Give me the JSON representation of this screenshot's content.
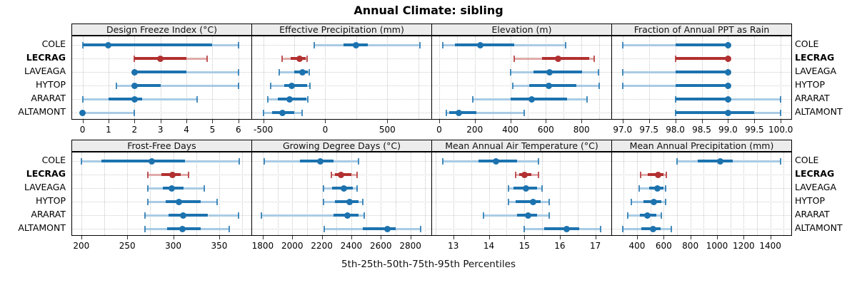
{
  "title": "Annual Climate: sibling",
  "caption": "5th-25th-50th-75th-95th Percentiles",
  "sites": [
    "COLE",
    "LECRAG",
    "LAVEAGA",
    "HYTOP",
    "ARARAT",
    "ALTAMONT"
  ],
  "highlight_site": "LECRAG",
  "colors": {
    "blue": "#1c72ae",
    "blue_light": "#a9cbe5",
    "red": "#b23030",
    "red_light": "#e0abab",
    "grid": "#c6c6c6",
    "strip_bg": "#ececec",
    "panel_border": "#000000"
  },
  "chart_data": {
    "type": "scatter",
    "variant": "percentile-dot-interval",
    "percentiles": [
      5,
      25,
      50,
      75,
      95
    ],
    "legend": "none",
    "grid_on": true,
    "panels": [
      {
        "title": "Design Freeze Index (°C)",
        "row": 0,
        "col": 0,
        "domain": [
          -0.4,
          6.5
        ],
        "tick_values": [
          0,
          1,
          2,
          3,
          4,
          5,
          6
        ],
        "tick_labels": [
          "0",
          "1",
          "2",
          "3",
          "4",
          "5",
          "6"
        ],
        "grid": {
          "start": 0,
          "step": 1,
          "end": 6
        },
        "series": [
          {
            "site": "COLE",
            "values": [
              0,
              0,
              1,
              5,
              6
            ]
          },
          {
            "site": "LECRAG",
            "values": [
              2,
              2,
              3,
              4,
              4.8
            ]
          },
          {
            "site": "LAVEAGA",
            "values": [
              2,
              2,
              2,
              4,
              6
            ]
          },
          {
            "site": "HYTOP",
            "values": [
              1.3,
              2,
              2,
              3,
              6
            ]
          },
          {
            "site": "ARARAT",
            "values": [
              0,
              1,
              2,
              2.3,
              4.4
            ]
          },
          {
            "site": "ALTAMONT",
            "values": [
              0,
              0,
              0,
              0,
              2
            ]
          }
        ]
      },
      {
        "title": "Effective Precipitation (mm)",
        "row": 0,
        "col": 1,
        "domain": [
          -590,
          855
        ],
        "tick_values": [
          -500,
          0,
          500
        ],
        "tick_labels": [
          "-500",
          "0",
          "500"
        ],
        "grid": {
          "start": -500,
          "step": 250,
          "end": 750
        },
        "series": [
          {
            "site": "COLE",
            "values": [
              -90,
              145,
              250,
              345,
              765
            ]
          },
          {
            "site": "LECRAG",
            "values": [
              -350,
              -280,
              -205,
              -160,
              -145
            ]
          },
          {
            "site": "LAVEAGA",
            "values": [
              -370,
              -250,
              -185,
              -140,
              -130
            ]
          },
          {
            "site": "HYTOP",
            "values": [
              -440,
              -330,
              -270,
              -145,
              -125
            ]
          },
          {
            "site": "ARARAT",
            "values": [
              -465,
              -380,
              -290,
              -155,
              -140
            ]
          },
          {
            "site": "ALTAMONT",
            "values": [
              -500,
              -430,
              -345,
              -250,
              -185
            ]
          }
        ]
      },
      {
        "title": "Elevation (m)",
        "row": 0,
        "col": 2,
        "domain": [
          -40,
          968
        ],
        "tick_values": [
          0,
          200,
          400,
          600,
          800
        ],
        "tick_labels": [
          "0",
          "200",
          "400",
          "600",
          "800"
        ],
        "grid": {
          "start": 0,
          "step": 100,
          "end": 900
        },
        "series": [
          {
            "site": "COLE",
            "values": [
              20,
              90,
              230,
              420,
              710
            ]
          },
          {
            "site": "LECRAG",
            "values": [
              420,
              580,
              670,
              845,
              870
            ]
          },
          {
            "site": "LAVEAGA",
            "values": [
              400,
              530,
              620,
              805,
              895
            ]
          },
          {
            "site": "HYTOP",
            "values": [
              415,
              505,
              615,
              770,
              900
            ]
          },
          {
            "site": "ARARAT",
            "values": [
              190,
              400,
              520,
              720,
              830
            ]
          },
          {
            "site": "ALTAMONT",
            "values": [
              40,
              55,
              110,
              210,
              480
            ]
          }
        ]
      },
      {
        "title": "Fraction of Annual PPT as Rain",
        "row": 0,
        "col": 3,
        "domain": [
          96.8,
          100.2
        ],
        "tick_values": [
          97.0,
          97.5,
          98.0,
          98.5,
          99.0,
          99.5,
          100.0
        ],
        "tick_labels": [
          "97.0",
          "97.5",
          "98.0",
          "98.5",
          "99.0",
          "99.5",
          "100.0"
        ],
        "grid": {
          "start": 97,
          "step": 0.5,
          "end": 100
        },
        "series": [
          {
            "site": "COLE",
            "values": [
              97,
              98,
              99,
              99,
              99
            ]
          },
          {
            "site": "LECRAG",
            "values": [
              98,
              98,
              99,
              99,
              99
            ]
          },
          {
            "site": "LAVEAGA",
            "values": [
              97,
              98,
              99,
              99,
              99
            ]
          },
          {
            "site": "HYTOP",
            "values": [
              97,
              98,
              99,
              99,
              99
            ]
          },
          {
            "site": "ARARAT",
            "values": [
              98,
              98,
              99,
              99,
              100
            ]
          },
          {
            "site": "ALTAMONT",
            "values": [
              98,
              98,
              99,
              99.5,
              100
            ]
          }
        ]
      },
      {
        "title": "Frost-Free Days",
        "row": 1,
        "col": 0,
        "domain": [
          190,
          385
        ],
        "tick_values": [
          200,
          250,
          300,
          350
        ],
        "tick_labels": [
          "200",
          "250",
          "300",
          "350"
        ],
        "grid": {
          "start": 200,
          "step": 25,
          "end": 375
        },
        "series": [
          {
            "site": "COLE",
            "values": [
              200,
              222,
              277,
              313,
              372
            ]
          },
          {
            "site": "LECRAG",
            "values": [
              272,
              287,
              299,
              308,
              317
            ]
          },
          {
            "site": "LAVEAGA",
            "values": [
              272,
              289,
              298,
              311,
              334
            ]
          },
          {
            "site": "HYTOP",
            "values": [
              272,
              292,
              306,
              330,
              348
            ]
          },
          {
            "site": "ARARAT",
            "values": [
              269,
              295,
              311,
              338,
              371
            ]
          },
          {
            "site": "ALTAMONT",
            "values": [
              269,
              293,
              310,
              330,
              361
            ]
          }
        ]
      },
      {
        "title": "Growing Degree Days (°C)",
        "row": 1,
        "col": 1,
        "domain": [
          1728,
          2942
        ],
        "tick_values": [
          1800,
          2000,
          2200,
          2400,
          2600,
          2800
        ],
        "tick_labels": [
          "1800",
          "2000",
          "2200",
          "2400",
          "2600",
          "2800"
        ],
        "grid": {
          "start": 1800,
          "step": 100,
          "end": 2900
        },
        "series": [
          {
            "site": "COLE",
            "values": [
              1810,
              2050,
              2190,
              2280,
              2450
            ]
          },
          {
            "site": "LECRAG",
            "values": [
              2265,
              2290,
              2330,
              2400,
              2440
            ]
          },
          {
            "site": "LAVEAGA",
            "values": [
              2210,
              2270,
              2350,
              2410,
              2440
            ]
          },
          {
            "site": "HYTOP",
            "values": [
              2210,
              2290,
              2390,
              2450,
              2480
            ]
          },
          {
            "site": "ARARAT",
            "values": [
              1790,
              2280,
              2375,
              2450,
              2485
            ]
          },
          {
            "site": "ALTAMONT",
            "values": [
              2215,
              2480,
              2645,
              2700,
              2870
            ]
          }
        ]
      },
      {
        "title": "Mean Annual Air Temperature (°C)",
        "row": 1,
        "col": 2,
        "domain": [
          12.4,
          17.45
        ],
        "tick_values": [
          13,
          14,
          15,
          16,
          17
        ],
        "tick_labels": [
          "13",
          "14",
          "15",
          "16",
          "17"
        ],
        "grid": {
          "start": 12.5,
          "step": 0.5,
          "end": 17
        },
        "series": [
          {
            "site": "COLE",
            "values": [
              12.7,
              13.7,
              14.2,
              14.8,
              15.4
            ]
          },
          {
            "site": "LECRAG",
            "values": [
              14.75,
              14.85,
              15.0,
              15.2,
              15.4
            ]
          },
          {
            "site": "LAVEAGA",
            "values": [
              14.55,
              14.7,
              15.05,
              15.35,
              15.5
            ]
          },
          {
            "site": "HYTOP",
            "values": [
              14.55,
              14.75,
              15.25,
              15.45,
              15.7
            ]
          },
          {
            "site": "ARARAT",
            "values": [
              13.85,
              14.8,
              15.1,
              15.35,
              15.7
            ]
          },
          {
            "site": "ALTAMONT",
            "values": [
              15.0,
              15.55,
              16.2,
              16.55,
              17.15
            ]
          }
        ]
      },
      {
        "title": "Mean Annual Precipitation (mm)",
        "row": 1,
        "col": 3,
        "domain": [
          213,
          1557
        ],
        "tick_values": [
          400,
          600,
          800,
          1000,
          1200,
          1400
        ],
        "tick_labels": [
          "400",
          "600",
          "800",
          "1000",
          "1200",
          "1400"
        ],
        "grid": {
          "start": 300,
          "step": 100,
          "end": 1500
        },
        "series": [
          {
            "site": "COLE",
            "values": [
              700,
              855,
              1025,
              1120,
              1475
            ]
          },
          {
            "site": "LECRAG",
            "values": [
              425,
              480,
              560,
              600,
              620
            ]
          },
          {
            "site": "LAVEAGA",
            "values": [
              415,
              490,
              555,
              600,
              615
            ]
          },
          {
            "site": "HYTOP",
            "values": [
              360,
              450,
              525,
              580,
              615
            ]
          },
          {
            "site": "ARARAT",
            "values": [
              330,
              420,
              480,
              545,
              585
            ]
          },
          {
            "site": "ALTAMONT",
            "values": [
              295,
              430,
              523,
              575,
              655
            ]
          }
        ]
      }
    ]
  }
}
